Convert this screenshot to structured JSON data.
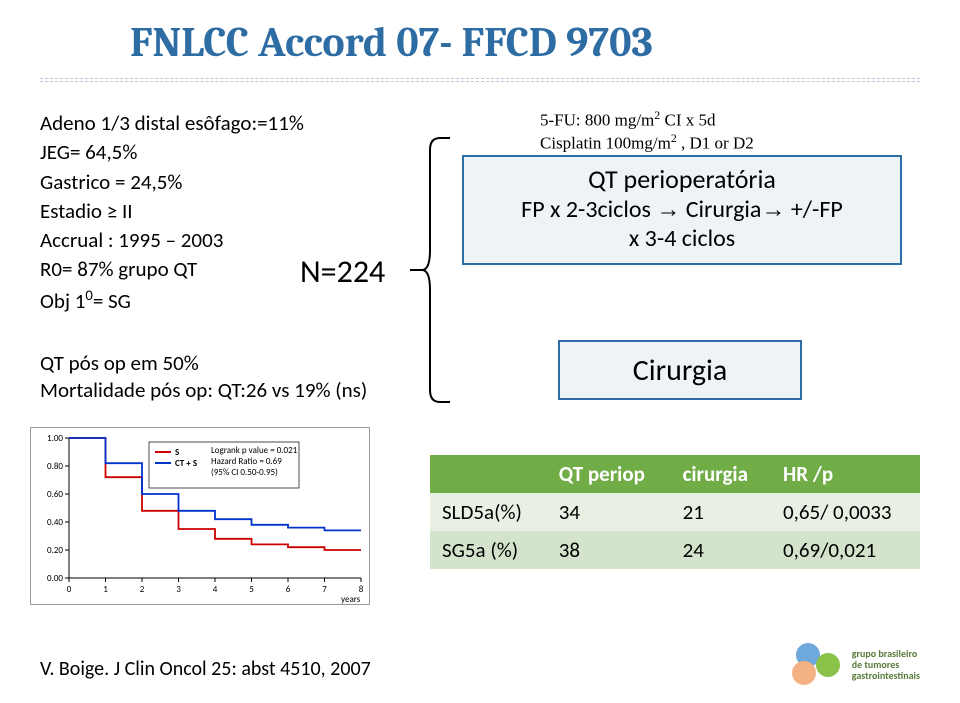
{
  "title": "FNLCC Accord 07- FFCD 9703",
  "left_col": {
    "l1": "Adeno 1/3 distal esôfago:=11%",
    "l2": "JEG= 64,5%",
    "l3": "Gastrico = 24,5%",
    "l4": "Estadio ≥  II",
    "l5": "Accrual : 1995 – 2003",
    "l6": "R0= 87% grupo QT",
    "l7_pre": "Obj 1",
    "l7_sup": "0",
    "l7_post": "= SG"
  },
  "n_label": "N=224",
  "left_col2": {
    "l1": "QT pós op em 50%",
    "l2": "Mortalidade pós op: QT:26 vs 19% (ns)"
  },
  "regimen": {
    "l1_a": "5-FU: 800 mg/m",
    "l1_b": "CI x 5d",
    "l2_a": "Cisplatin 100mg/m",
    "l2_b": ", D1 or D2"
  },
  "arm1": {
    "line1": "QT perioperatória",
    "line2_a": "FP x 2-3ciclos",
    "line2_b": "Cirurgia",
    "line2_c": "+/-FP",
    "line3": "x 3-4 ciclos"
  },
  "arm2": "Cirurgia",
  "table": {
    "headers": [
      "",
      "QT periop",
      "cirurgia",
      "HR /p"
    ],
    "rows": [
      [
        "SLD5a(%)",
        "34",
        "21",
        "0,65/ 0,0033"
      ],
      [
        "SG5a (%)",
        "38",
        "24",
        "0,69/0,021"
      ]
    ],
    "header_bg": "#70ad47",
    "row1_bg": "#e8f0e4",
    "row2_bg": "#d4e3cc"
  },
  "chart": {
    "type": "kaplan-meier",
    "xlabel": "years",
    "xlim": [
      0,
      8
    ],
    "ylim": [
      0,
      1.0
    ],
    "ytick_step": 0.2,
    "xtick_step": 1,
    "legend_box": [
      "Logrank p value = 0.021",
      "Hazard Ratio = 0.69",
      "(95% CI 0.50-0.95)"
    ],
    "series": [
      {
        "name": "S",
        "color": "#cc0000",
        "points": [
          [
            0,
            1.0
          ],
          [
            1,
            0.72
          ],
          [
            2,
            0.48
          ],
          [
            3,
            0.35
          ],
          [
            4,
            0.28
          ],
          [
            5,
            0.24
          ],
          [
            6,
            0.22
          ],
          [
            7,
            0.2
          ],
          [
            8,
            0.2
          ]
        ]
      },
      {
        "name": "CT + S",
        "color": "#0033cc",
        "points": [
          [
            0,
            1.0
          ],
          [
            1,
            0.82
          ],
          [
            2,
            0.6
          ],
          [
            3,
            0.48
          ],
          [
            4,
            0.42
          ],
          [
            5,
            0.38
          ],
          [
            6,
            0.36
          ],
          [
            7,
            0.34
          ],
          [
            8,
            0.34
          ]
        ]
      }
    ],
    "bg": "#ffffff",
    "axis_color": "#000000",
    "legend_font_size": 9,
    "axis_font_size": 9
  },
  "citation": "V. Boige. J Clin Oncol 25: abst 4510, 2007",
  "logo_text": {
    "l1": "grupo brasileiro",
    "l2": "de tumores",
    "l3": "gastrointestinais"
  },
  "colors": {
    "title": "#2e6ca4",
    "box_border": "#2e6ca4",
    "box_bg": "#eef3f8"
  }
}
